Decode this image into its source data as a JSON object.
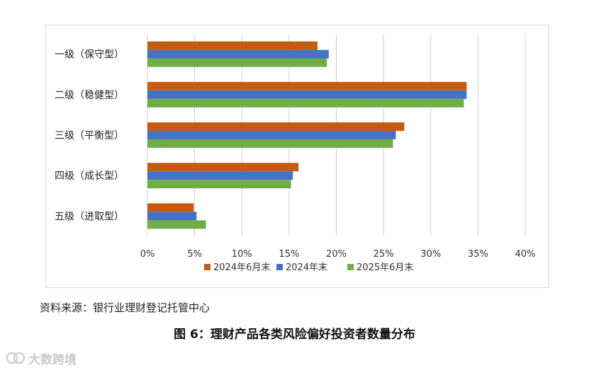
{
  "chart_data": {
    "type": "bar",
    "orientation": "horizontal",
    "categories": [
      "一级（保守型）",
      "二级（稳健型）",
      "三级（平衡型）",
      "四级（成长型）",
      "五级（进取型）"
    ],
    "series": [
      {
        "name": "2024年6月末",
        "color": "#c55a11",
        "values": [
          18.0,
          33.8,
          27.2,
          16.0,
          4.9
        ]
      },
      {
        "name": "2024年末",
        "color": "#4472c4",
        "values": [
          19.2,
          33.8,
          26.3,
          15.4,
          5.2
        ]
      },
      {
        "name": "2025年6月末",
        "color": "#70ad47",
        "values": [
          19.0,
          33.5,
          26.0,
          15.2,
          6.2
        ]
      }
    ],
    "xlim": [
      0,
      40
    ],
    "x_ticks": [
      "0%",
      "5%",
      "10%",
      "15%",
      "20%",
      "25%",
      "30%",
      "35%",
      "40%"
    ],
    "grid": "vertical",
    "legend_position": "bottom"
  },
  "source_note": "资料来源：银行业理财登记托管中心",
  "figure_caption": "图 6：理财产品各类风险偏好投资者数量分布",
  "watermark": {
    "text": "大数跨境",
    "icon": "watermark-logo-icon"
  }
}
